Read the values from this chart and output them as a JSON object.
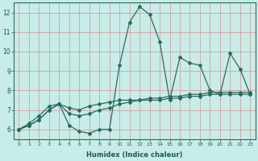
{
  "xlabel": "Humidex (Indice chaleur)",
  "background_color": "#c8ece8",
  "grid_color": "#d4a0a0",
  "line_color": "#2a6b60",
  "xlim": [
    -0.5,
    23.5
  ],
  "ylim": [
    5.5,
    12.5
  ],
  "yticks": [
    6,
    7,
    8,
    9,
    10,
    11,
    12
  ],
  "xticks": [
    0,
    1,
    2,
    3,
    4,
    5,
    6,
    7,
    8,
    9,
    10,
    11,
    12,
    13,
    14,
    15,
    16,
    17,
    18,
    19,
    20,
    21,
    22,
    23
  ],
  "series": [
    {
      "x": [
        0,
        1,
        2,
        3,
        4,
        5,
        6,
        7,
        8,
        9,
        10,
        11,
        12,
        13,
        14,
        15,
        16,
        17,
        18,
        19,
        20,
        21,
        22,
        23
      ],
      "y": [
        6.0,
        6.2,
        6.5,
        7.0,
        7.3,
        6.2,
        5.9,
        5.8,
        6.0,
        6.0,
        9.3,
        11.5,
        12.3,
        11.9,
        10.5,
        7.5,
        9.7,
        9.4,
        9.3,
        8.0,
        7.8,
        9.9,
        9.1,
        7.8
      ]
    },
    {
      "x": [
        0,
        1,
        2,
        3,
        4,
        5,
        6,
        7,
        8,
        9,
        10,
        11,
        12,
        13,
        14,
        15,
        16,
        17,
        18,
        19,
        20,
        21,
        22,
        23
      ],
      "y": [
        6.0,
        6.3,
        6.7,
        7.2,
        7.3,
        7.1,
        7.0,
        7.2,
        7.3,
        7.4,
        7.5,
        7.5,
        7.5,
        7.6,
        7.6,
        7.7,
        7.7,
        7.8,
        7.8,
        7.9,
        7.9,
        7.9,
        7.9,
        7.9
      ]
    },
    {
      "x": [
        0,
        1,
        2,
        3,
        4,
        5,
        6,
        7,
        8,
        9,
        10,
        11,
        12,
        13,
        14,
        15,
        16,
        17,
        18,
        19,
        20,
        21,
        22,
        23
      ],
      "y": [
        6.0,
        6.2,
        6.5,
        7.0,
        7.3,
        6.8,
        6.7,
        6.8,
        7.0,
        7.1,
        7.3,
        7.4,
        7.5,
        7.5,
        7.5,
        7.6,
        7.6,
        7.7,
        7.7,
        7.8,
        7.8,
        7.8,
        7.8,
        7.8
      ]
    }
  ]
}
